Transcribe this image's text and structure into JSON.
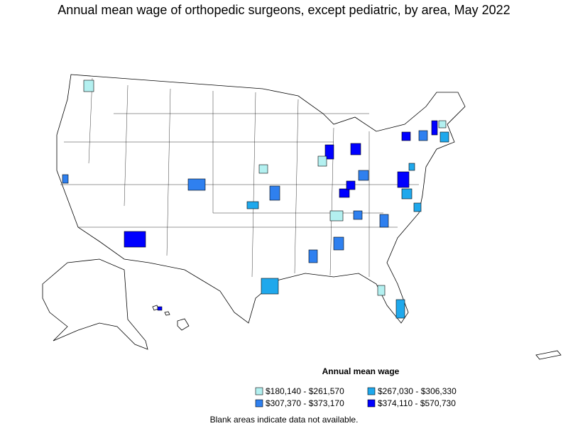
{
  "title": "Annual mean wage of orthopedic surgeons, except pediatric, by area, May 2022",
  "legend": {
    "title": "Annual mean wage",
    "items": [
      {
        "label": "$180,140 - $261,570",
        "color": "#b3f0f0"
      },
      {
        "label": "$267,030 - $306,330",
        "color": "#1fa8ec"
      },
      {
        "label": "$307,370 - $373,170",
        "color": "#2f80ef"
      },
      {
        "label": "$374,110 - $570,730",
        "color": "#0000ff"
      }
    ]
  },
  "footnote": "Blank areas indicate data not available."
}
